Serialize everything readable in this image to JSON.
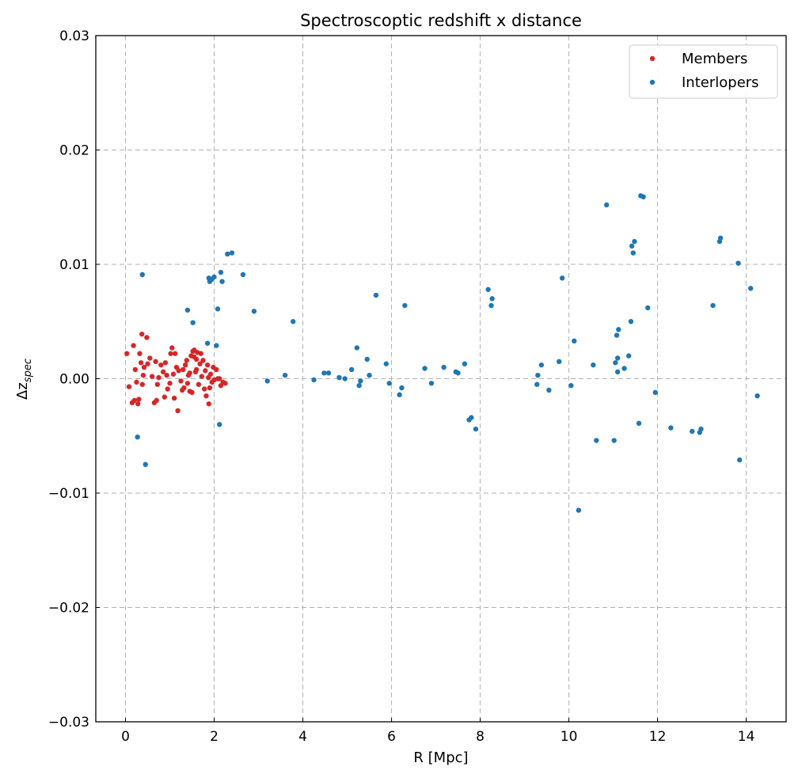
{
  "chart_data": {
    "type": "scatter",
    "title": "Spectroscoptic redshift x distance",
    "xlabel": "R [Mpc]",
    "ylabel": "Δz_spec",
    "ylabel_main": "Δz",
    "ylabel_sub": "spec",
    "xlim": [
      -0.67,
      14.9
    ],
    "ylim": [
      -0.03,
      0.03
    ],
    "xticks": [
      0,
      2,
      4,
      6,
      8,
      10,
      12,
      14
    ],
    "yticks": [
      -0.03,
      -0.02,
      -0.01,
      0.0,
      0.01,
      0.02,
      0.03
    ],
    "xtick_labels": [
      "0",
      "2",
      "4",
      "6",
      "8",
      "10",
      "12",
      "14"
    ],
    "ytick_labels": [
      "−0.03",
      "−0.02",
      "−0.01",
      "0.00",
      "0.01",
      "0.02",
      "0.03"
    ],
    "grid": true,
    "legend_position": "top-right",
    "series": [
      {
        "name": "Members",
        "color": "#d62728",
        "points": [
          [
            0.03,
            0.0022
          ],
          [
            0.08,
            -0.0007
          ],
          [
            0.15,
            -0.0021
          ],
          [
            0.18,
            0.0029
          ],
          [
            0.2,
            -0.0019
          ],
          [
            0.22,
            0.0008
          ],
          [
            0.25,
            -0.0003
          ],
          [
            0.28,
            -0.0022
          ],
          [
            0.3,
            -0.0018
          ],
          [
            0.32,
            0.0022
          ],
          [
            0.35,
            0.0014
          ],
          [
            0.37,
            0.0039
          ],
          [
            0.38,
            -0.0005
          ],
          [
            0.4,
            0.0003
          ],
          [
            0.42,
            0.001
          ],
          [
            0.48,
            0.0036
          ],
          [
            0.5,
            0.0013
          ],
          [
            0.55,
            0.0018
          ],
          [
            0.6,
            0.0002
          ],
          [
            0.65,
            -0.0021
          ],
          [
            0.68,
            0.0015
          ],
          [
            0.7,
            -0.0019
          ],
          [
            0.72,
            -0.0005
          ],
          [
            0.75,
            0.0001
          ],
          [
            0.8,
            0.0012
          ],
          [
            0.85,
            0.0006
          ],
          [
            0.88,
            -0.0016
          ],
          [
            0.9,
            0.0014
          ],
          [
            0.93,
            0.0003
          ],
          [
            0.95,
            -0.0009
          ],
          [
            1.0,
            -0.0004
          ],
          [
            1.02,
            0.0022
          ],
          [
            1.05,
            0.0027
          ],
          [
            1.08,
            0.0004
          ],
          [
            1.1,
            -0.0017
          ],
          [
            1.12,
            0.0022
          ],
          [
            1.15,
            0.001
          ],
          [
            1.18,
            -0.0028
          ],
          [
            1.2,
            0.0007
          ],
          [
            1.25,
            -0.0002
          ],
          [
            1.28,
            -0.001
          ],
          [
            1.3,
            0.0008
          ],
          [
            1.32,
            -0.0008
          ],
          [
            1.35,
            0.0012
          ],
          [
            1.38,
            0.0016
          ],
          [
            1.4,
            -0.0004
          ],
          [
            1.42,
            0.0003
          ],
          [
            1.45,
            -0.0011
          ],
          [
            1.48,
            0.002
          ],
          [
            1.5,
            -0.0012
          ],
          [
            1.52,
            0.0024
          ],
          [
            1.55,
            0.0025
          ],
          [
            1.58,
            0.0006
          ],
          [
            1.6,
            0.0017
          ],
          [
            1.62,
            0.0023
          ],
          [
            1.65,
            -0.0005
          ],
          [
            1.68,
            0.0013
          ],
          [
            1.7,
            0.0022
          ],
          [
            1.72,
            0.0002
          ],
          [
            1.75,
            0.0016
          ],
          [
            1.78,
            -0.0009
          ],
          [
            1.8,
            0.0007
          ],
          [
            1.82,
            -0.0015
          ],
          [
            1.85,
            0.0012
          ],
          [
            1.87,
            0.0001
          ],
          [
            1.88,
            -0.0022
          ],
          [
            1.9,
            -0.0008
          ],
          [
            1.92,
            0.0004
          ],
          [
            1.95,
            -0.0003
          ],
          [
            1.98,
            0.001
          ],
          [
            2.0,
            -0.0001
          ],
          [
            2.05,
            0.0008
          ],
          [
            2.08,
            0.0
          ],
          [
            2.12,
            0.0
          ],
          [
            2.15,
            -0.0006
          ],
          [
            2.2,
            -0.0003
          ],
          [
            2.25,
            -0.0004
          ],
          [
            1.55,
            0.0019
          ],
          [
            1.6,
            0.0008
          ],
          [
            1.45,
            0.0005
          ]
        ]
      },
      {
        "name": "Interlopers",
        "color": "#1f77b4",
        "points": [
          [
            0.27,
            -0.0051
          ],
          [
            0.38,
            0.0091
          ],
          [
            0.45,
            -0.0075
          ],
          [
            1.4,
            0.006
          ],
          [
            1.52,
            0.0049
          ],
          [
            1.85,
            0.0031
          ],
          [
            1.88,
            0.0088
          ],
          [
            1.9,
            0.0085
          ],
          [
            1.95,
            0.0087
          ],
          [
            2.0,
            0.0089
          ],
          [
            2.05,
            0.0029
          ],
          [
            2.08,
            0.0061
          ],
          [
            2.12,
            -0.004
          ],
          [
            2.15,
            0.0093
          ],
          [
            2.18,
            0.0085
          ],
          [
            2.3,
            0.0109
          ],
          [
            2.4,
            0.011
          ],
          [
            2.65,
            0.0091
          ],
          [
            2.9,
            0.0059
          ],
          [
            3.2,
            -0.0002
          ],
          [
            3.6,
            0.0003
          ],
          [
            3.78,
            0.005
          ],
          [
            4.25,
            -0.0001
          ],
          [
            4.48,
            0.0005
          ],
          [
            4.58,
            0.0005
          ],
          [
            4.82,
            0.0001
          ],
          [
            4.95,
            0.0
          ],
          [
            5.1,
            0.0008
          ],
          [
            5.22,
            0.0027
          ],
          [
            5.27,
            -0.0006
          ],
          [
            5.3,
            -0.0002
          ],
          [
            5.45,
            0.0017
          ],
          [
            5.5,
            0.0003
          ],
          [
            5.65,
            0.0073
          ],
          [
            5.88,
            0.0013
          ],
          [
            5.95,
            -0.0004
          ],
          [
            6.18,
            -0.0014
          ],
          [
            6.23,
            -0.0008
          ],
          [
            6.3,
            0.0064
          ],
          [
            6.75,
            0.0009
          ],
          [
            6.9,
            -0.0004
          ],
          [
            7.18,
            0.001
          ],
          [
            7.45,
            0.0006
          ],
          [
            7.5,
            0.0005
          ],
          [
            7.65,
            0.0013
          ],
          [
            7.75,
            -0.0036
          ],
          [
            7.8,
            -0.0034
          ],
          [
            7.9,
            -0.0044
          ],
          [
            8.18,
            0.0078
          ],
          [
            8.25,
            0.0064
          ],
          [
            8.27,
            0.007
          ],
          [
            9.28,
            -0.0005
          ],
          [
            9.3,
            0.0003
          ],
          [
            9.38,
            0.0012
          ],
          [
            9.55,
            -0.001
          ],
          [
            9.78,
            0.0015
          ],
          [
            9.85,
            0.0088
          ],
          [
            10.05,
            -0.0006
          ],
          [
            10.12,
            0.0033
          ],
          [
            10.22,
            -0.0115
          ],
          [
            10.55,
            0.0012
          ],
          [
            10.62,
            -0.0054
          ],
          [
            10.85,
            0.0152
          ],
          [
            11.02,
            -0.0054
          ],
          [
            11.05,
            0.0014
          ],
          [
            11.08,
            0.0038
          ],
          [
            11.1,
            0.0018
          ],
          [
            11.12,
            0.0043
          ],
          [
            11.1,
            0.0006
          ],
          [
            11.25,
            0.0009
          ],
          [
            11.35,
            0.002
          ],
          [
            11.4,
            0.005
          ],
          [
            11.42,
            0.0116
          ],
          [
            11.45,
            0.011
          ],
          [
            11.48,
            0.012
          ],
          [
            11.58,
            -0.0039
          ],
          [
            11.62,
            0.016
          ],
          [
            11.68,
            0.0159
          ],
          [
            11.78,
            0.0062
          ],
          [
            11.95,
            -0.0012
          ],
          [
            12.3,
            -0.0043
          ],
          [
            12.78,
            -0.0046
          ],
          [
            12.95,
            -0.0047
          ],
          [
            12.98,
            -0.0044
          ],
          [
            13.25,
            0.0064
          ],
          [
            13.4,
            0.012
          ],
          [
            13.42,
            0.0123
          ],
          [
            13.82,
            0.0101
          ],
          [
            13.85,
            -0.0071
          ],
          [
            14.1,
            0.0079
          ],
          [
            14.25,
            -0.0015
          ]
        ]
      }
    ]
  }
}
